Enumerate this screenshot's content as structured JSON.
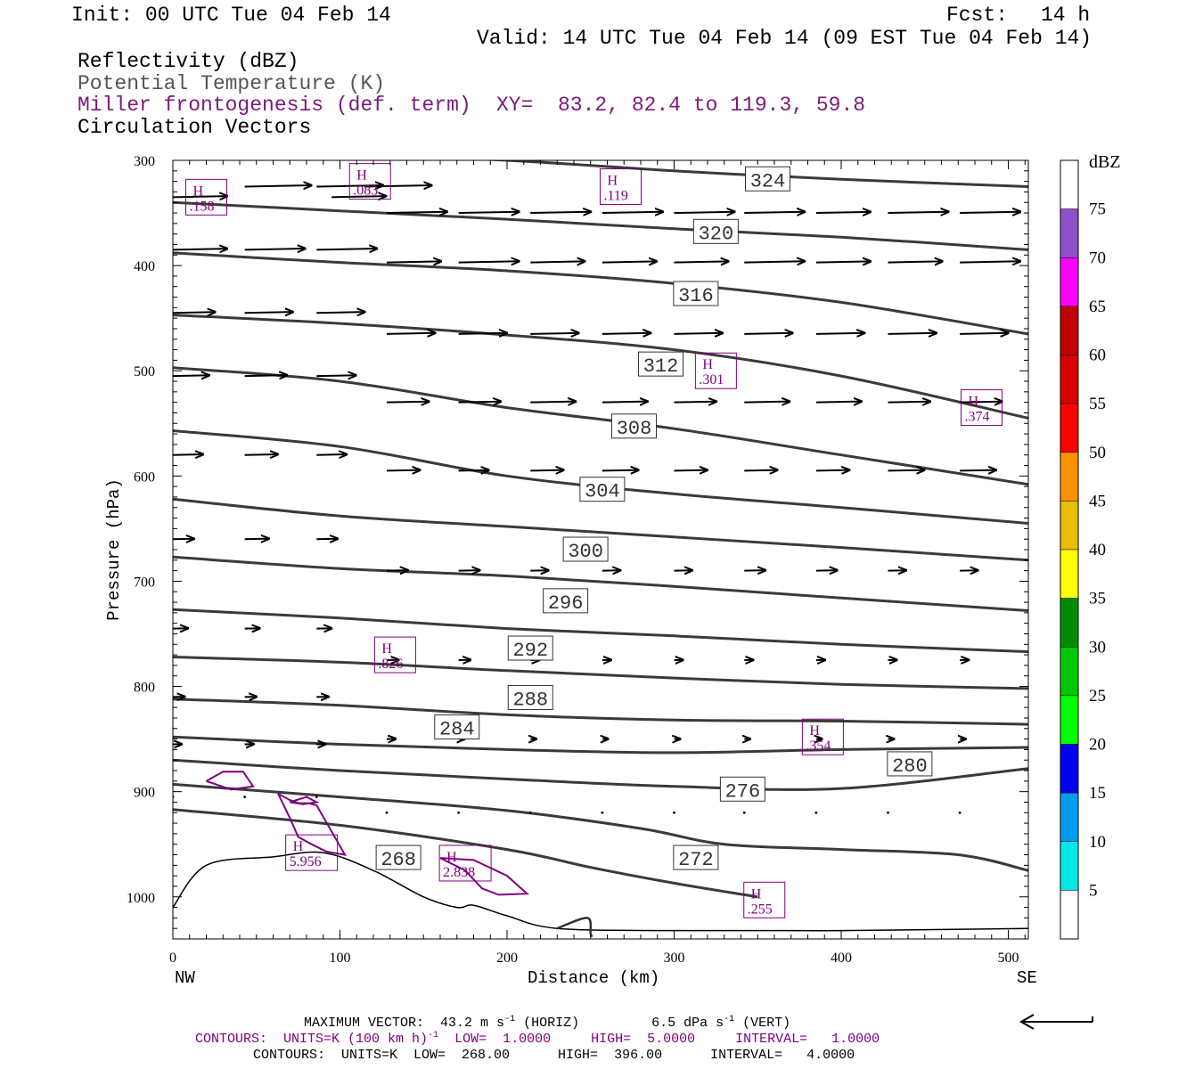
{
  "header": {
    "init": "Init: 00 UTC Tue 04 Feb 14",
    "fcst_label": "Fcst:",
    "fcst_value": "14 h",
    "valid": "Valid: 14 UTC Tue 04 Feb 14 (09 EST Tue 04 Feb 14)",
    "fields": [
      {
        "label": "Reflectivity (dBZ)",
        "color": "#000000"
      },
      {
        "label": "Potential Temperature (K)",
        "color": "#555555"
      },
      {
        "label": "Miller frontogenesis (def. term)",
        "color": "#7a1a7a"
      },
      {
        "label": "Circulation Vectors",
        "color": "#000000"
      }
    ],
    "xy": "XY=  83.2, 82.4 to 119.3, 59.8"
  },
  "colors": {
    "theta": "#3a3a3a",
    "fronto": "#800080",
    "terrain": "#000000"
  },
  "chart_data": {
    "type": "cross-section",
    "xlabel": "Distance (km)",
    "ylabel": "Pressure (hPa)",
    "xlim": [
      0,
      512
    ],
    "ylim": [
      1040,
      300
    ],
    "xticks": [
      0,
      100,
      200,
      300,
      400,
      500
    ],
    "yticks": [
      300,
      400,
      500,
      600,
      700,
      800,
      900,
      1000
    ],
    "x_end_labels": {
      "left": "NW",
      "right": "SE"
    },
    "theta_contours": [
      {
        "level": 324,
        "points": [
          [
            0,
            288
          ],
          [
            100,
            294
          ],
          [
            200,
            300
          ],
          [
            300,
            310
          ],
          [
            400,
            318
          ],
          [
            512,
            325
          ]
        ]
      },
      {
        "level": 320,
        "points": [
          [
            0,
            340
          ],
          [
            100,
            348
          ],
          [
            200,
            356
          ],
          [
            300,
            365
          ],
          [
            400,
            373
          ],
          [
            512,
            385
          ]
        ]
      },
      {
        "level": 316,
        "points": [
          [
            0,
            388
          ],
          [
            100,
            397
          ],
          [
            200,
            405
          ],
          [
            300,
            417
          ],
          [
            400,
            435
          ],
          [
            512,
            465
          ]
        ]
      },
      {
        "level": 312,
        "points": [
          [
            0,
            447
          ],
          [
            100,
            455
          ],
          [
            200,
            466
          ],
          [
            300,
            480
          ],
          [
            400,
            505
          ],
          [
            512,
            545
          ]
        ]
      },
      {
        "level": 308,
        "points": [
          [
            0,
            497
          ],
          [
            100,
            510
          ],
          [
            200,
            535
          ],
          [
            300,
            555
          ],
          [
            400,
            580
          ],
          [
            512,
            608
          ]
        ]
      },
      {
        "level": 304,
        "points": [
          [
            0,
            557
          ],
          [
            100,
            572
          ],
          [
            200,
            600
          ],
          [
            300,
            617
          ],
          [
            400,
            630
          ],
          [
            512,
            645
          ]
        ]
      },
      {
        "level": 300,
        "points": [
          [
            0,
            622
          ],
          [
            100,
            638
          ],
          [
            200,
            648
          ],
          [
            300,
            658
          ],
          [
            400,
            668
          ],
          [
            512,
            680
          ]
        ]
      },
      {
        "level": 296,
        "points": [
          [
            0,
            677
          ],
          [
            100,
            688
          ],
          [
            200,
            695
          ],
          [
            300,
            705
          ],
          [
            400,
            716
          ],
          [
            512,
            728
          ]
        ]
      },
      {
        "level": 292,
        "points": [
          [
            0,
            727
          ],
          [
            100,
            735
          ],
          [
            200,
            745
          ],
          [
            300,
            752
          ],
          [
            400,
            760
          ],
          [
            512,
            767
          ]
        ]
      },
      {
        "level": 288,
        "points": [
          [
            0,
            772
          ],
          [
            100,
            777
          ],
          [
            200,
            785
          ],
          [
            300,
            792
          ],
          [
            400,
            798
          ],
          [
            512,
            802
          ]
        ]
      },
      {
        "level": 284,
        "points": [
          [
            0,
            812
          ],
          [
            100,
            818
          ],
          [
            200,
            827
          ],
          [
            300,
            832
          ],
          [
            400,
            833
          ],
          [
            512,
            836
          ]
        ]
      },
      {
        "level": 280,
        "points": [
          [
            0,
            848
          ],
          [
            100,
            855
          ],
          [
            200,
            860
          ],
          [
            300,
            863
          ],
          [
            400,
            860
          ],
          [
            512,
            858
          ]
        ]
      },
      {
        "level": 276,
        "points": [
          [
            0,
            870
          ],
          [
            100,
            880
          ],
          [
            200,
            888
          ],
          [
            300,
            895
          ],
          [
            400,
            897
          ],
          [
            512,
            878
          ]
        ]
      },
      {
        "level": 272,
        "points": [
          [
            0,
            893
          ],
          [
            100,
            905
          ],
          [
            200,
            918
          ],
          [
            280,
            935
          ],
          [
            330,
            950
          ],
          [
            400,
            955
          ],
          [
            470,
            960
          ],
          [
            512,
            975
          ]
        ]
      },
      {
        "level": 268,
        "points": [
          [
            0,
            917
          ],
          [
            100,
            932
          ],
          [
            200,
            955
          ],
          [
            250,
            972
          ],
          [
            300,
            987
          ],
          [
            350,
            1000
          ]
        ]
      }
    ],
    "contour_labels": [
      {
        "text": "324",
        "x": 356,
        "p": 318
      },
      {
        "text": "320",
        "x": 325,
        "p": 368
      },
      {
        "text": "316",
        "x": 313,
        "p": 427
      },
      {
        "text": "312",
        "x": 292,
        "p": 494
      },
      {
        "text": "308",
        "x": 276,
        "p": 553
      },
      {
        "text": "304",
        "x": 257,
        "p": 613
      },
      {
        "text": "300",
        "x": 247,
        "p": 670
      },
      {
        "text": "296",
        "x": 235,
        "p": 719
      },
      {
        "text": "292",
        "x": 214,
        "p": 764
      },
      {
        "text": "288",
        "x": 214,
        "p": 811
      },
      {
        "text": "284",
        "x": 170,
        "p": 839
      },
      {
        "text": "280",
        "x": 441,
        "p": 874
      },
      {
        "text": "276",
        "x": 341,
        "p": 898
      },
      {
        "text": "272",
        "x": 313,
        "p": 963
      },
      {
        "text": "268",
        "x": 135,
        "p": 963
      }
    ],
    "fronto_maxima": [
      {
        "letter": "H",
        "value": ".158",
        "x": 20,
        "p": 335
      },
      {
        "letter": "H",
        "value": ".083",
        "x": 118,
        "p": 320
      },
      {
        "letter": "H",
        "value": ".119",
        "x": 268,
        "p": 325
      },
      {
        "letter": "H",
        "value": ".301",
        "x": 325,
        "p": 500
      },
      {
        "letter": "H",
        "value": ".374",
        "x": 484,
        "p": 535
      },
      {
        "letter": "H",
        "value": ".826",
        "x": 133,
        "p": 770
      },
      {
        "letter": "H",
        "value": ".354",
        "x": 389,
        "p": 848
      },
      {
        "letter": "H",
        "value": "5.956",
        "x": 83,
        "p": 958
      },
      {
        "letter": "H",
        "value": "2.838",
        "x": 175,
        "p": 968
      },
      {
        "letter": "H",
        "value": ".255",
        "x": 354,
        "p": 1003
      }
    ],
    "fronto_contours": [
      {
        "level": 1,
        "points": [
          [
            20,
            890
          ],
          [
            30,
            881
          ],
          [
            42,
            881
          ],
          [
            48,
            895
          ],
          [
            35,
            898
          ],
          [
            20,
            890
          ]
        ]
      },
      {
        "level": 1,
        "points": [
          [
            63,
            902
          ],
          [
            70,
            908
          ],
          [
            75,
            911
          ],
          [
            81,
            911
          ],
          [
            86,
            913
          ],
          [
            103,
            960
          ],
          [
            92,
            957
          ],
          [
            83,
            950
          ],
          [
            75,
            943
          ],
          [
            70,
            925
          ],
          [
            63,
            902
          ]
        ]
      },
      {
        "level": 1,
        "points": [
          [
            70,
            910
          ],
          [
            80,
            905
          ],
          [
            86,
            910
          ],
          [
            78,
            912
          ],
          [
            70,
            910
          ]
        ]
      },
      {
        "level": 1,
        "points": [
          [
            160,
            963
          ],
          [
            180,
            965
          ],
          [
            200,
            980
          ],
          [
            212,
            997
          ],
          [
            195,
            998
          ],
          [
            185,
            992
          ],
          [
            175,
            975
          ],
          [
            160,
            963
          ]
        ]
      }
    ],
    "terrain": [
      [
        0,
        1010
      ],
      [
        20,
        970
      ],
      [
        60,
        962
      ],
      [
        90,
        958
      ],
      [
        120,
        975
      ],
      [
        150,
        1000
      ],
      [
        170,
        1010
      ],
      [
        180,
        1008
      ],
      [
        200,
        1018
      ],
      [
        230,
        1030
      ],
      [
        300,
        1032
      ],
      [
        400,
        1032
      ],
      [
        512,
        1030
      ]
    ],
    "terrain_dip": [
      [
        230,
        1030
      ],
      [
        248,
        1020
      ],
      [
        250,
        1035
      ],
      [
        251,
        1038
      ]
    ],
    "vectors": {
      "note": "u in m/s, w in dPa/s",
      "rows": [
        {
          "p": 335,
          "x": [
            0,
            95
          ],
          "u": 18,
          "w": 0
        },
        {
          "p": 325,
          "x": [
            43,
            86,
            115
          ],
          "u": 22,
          "w": 0
        },
        {
          "p": 350,
          "x": [
            128,
            171,
            214,
            257,
            300,
            342,
            385,
            428,
            471,
            514
          ],
          "u": [
            20,
            20,
            20,
            20,
            20,
            20,
            18,
            20,
            20,
            20
          ],
          "w": 0
        },
        {
          "p": 385,
          "x": [
            0,
            43,
            86
          ],
          "u": [
            18,
            20,
            20
          ],
          "w": 0
        },
        {
          "p": 397,
          "x": [
            128,
            171,
            214,
            257,
            300,
            342,
            385,
            428,
            471,
            514
          ],
          "u": [
            18,
            20,
            18,
            18,
            18,
            20,
            18,
            18,
            20,
            18
          ],
          "w": 0
        },
        {
          "p": 445,
          "x": [
            0,
            43,
            86
          ],
          "u": [
            14,
            16,
            16
          ],
          "w": 0
        },
        {
          "p": 465,
          "x": [
            128,
            171,
            214,
            257,
            300,
            342,
            385,
            428,
            471,
            514
          ],
          "u": [
            16,
            16,
            16,
            16,
            16,
            16,
            16,
            16,
            16,
            16
          ],
          "w": 0
        },
        {
          "p": 505,
          "x": [
            0,
            43,
            86
          ],
          "u": [
            12,
            14,
            13
          ],
          "w": 0
        },
        {
          "p": 530,
          "x": [
            128,
            171,
            214,
            257,
            300,
            342,
            385,
            428,
            471,
            514
          ],
          "u": [
            14,
            14,
            15,
            15,
            14,
            15,
            15,
            14,
            14,
            14
          ],
          "w": 0
        },
        {
          "p": 580,
          "x": [
            0,
            43,
            86
          ],
          "u": [
            10,
            11,
            10
          ],
          "w": 0
        },
        {
          "p": 595,
          "x": [
            128,
            171,
            214,
            257,
            300,
            342,
            385,
            428,
            471,
            514
          ],
          "u": [
            11,
            10,
            11,
            12,
            11,
            11,
            11,
            12,
            12,
            12
          ],
          "w": 0
        },
        {
          "p": 660,
          "x": [
            0,
            43,
            86
          ],
          "u": [
            7,
            8,
            7
          ],
          "w": 0
        },
        {
          "p": 690,
          "x": [
            128,
            171,
            214,
            257,
            300,
            342,
            385,
            428,
            471,
            514
          ],
          "u": [
            7,
            7,
            6,
            6,
            6,
            7,
            7,
            6,
            6,
            6
          ],
          "w": 0
        },
        {
          "p": 745,
          "x": [
            0,
            43,
            86
          ],
          "u": [
            5,
            5,
            5
          ],
          "w": 0
        },
        {
          "p": 775,
          "x": [
            128,
            171,
            214,
            257,
            300,
            342,
            385,
            428,
            471,
            514
          ],
          "u": [
            4,
            4,
            3,
            3,
            3,
            3,
            3,
            3,
            3,
            3
          ],
          "w": 0
        },
        {
          "p": 810,
          "x": [
            0,
            43,
            86
          ],
          "u": [
            4,
            4,
            4
          ],
          "w": 0
        },
        {
          "p": 850,
          "x": [
            128,
            171,
            214,
            257,
            300,
            342,
            385,
            428,
            471,
            514
          ],
          "u": [
            3,
            2,
            2,
            2,
            2,
            2,
            2,
            2,
            2,
            2
          ],
          "w": 0
        },
        {
          "p": 855,
          "x": [
            0,
            43,
            86
          ],
          "u": [
            3,
            3,
            3
          ],
          "w": 0
        },
        {
          "p": 905,
          "x": [
            0,
            43,
            86
          ],
          "u": [
            1,
            1,
            1
          ],
          "w": 0
        },
        {
          "p": 920,
          "x": [
            128,
            171,
            214,
            257,
            300,
            342,
            385,
            428,
            471,
            514
          ],
          "u": [
            1,
            1,
            1,
            1,
            1,
            1,
            1,
            1,
            1,
            1
          ],
          "w": 0
        }
      ]
    },
    "colorbar": {
      "title": "dBZ",
      "ticks": [
        "5",
        "10",
        "15",
        "20",
        "25",
        "30",
        "35",
        "40",
        "45",
        "50",
        "55",
        "60",
        "65",
        "70",
        "75"
      ],
      "colors": [
        "#00e8e8",
        "#009cf0",
        "#0000f0",
        "#00ff00",
        "#00c800",
        "#008c00",
        "#ffff00",
        "#e8c000",
        "#ff9000",
        "#ff0000",
        "#d80000",
        "#c00000",
        "#ff00ff",
        "#9050c8"
      ]
    }
  },
  "footer": {
    "max_vector_label": "MAXIMUM VECTOR:",
    "max_vector_horiz": "43.2 m s",
    "max_vector_horiz_suffix": "(HORIZ)",
    "max_vector_vert": "6.5 dPa s",
    "max_vector_vert_suffix": "(VERT)",
    "contours_fronto_prefix": "CONTOURS:  UNITS=K (100 km h)",
    "contours_fronto_rest": "  LOW=  1.0000     HIGH=  5.0000     INTERVAL=   1.0000",
    "contours_theta": "CONTOURS:  UNITS=K  LOW=  268.00      HIGH=  396.00      INTERVAL=   4.0000"
  }
}
